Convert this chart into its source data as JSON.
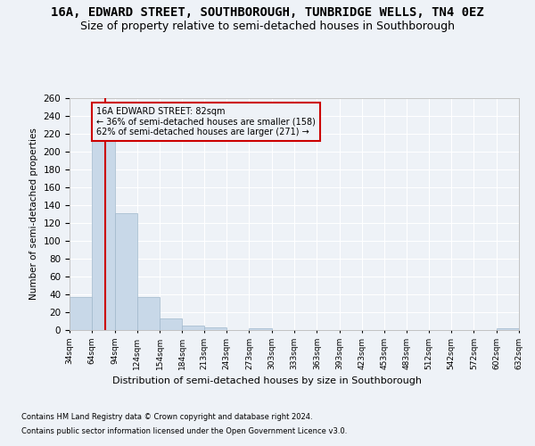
{
  "title1": "16A, EDWARD STREET, SOUTHBOROUGH, TUNBRIDGE WELLS, TN4 0EZ",
  "title2": "Size of property relative to semi-detached houses in Southborough",
  "xlabel": "Distribution of semi-detached houses by size in Southborough",
  "ylabel": "Number of semi-detached properties",
  "footnote1": "Contains HM Land Registry data © Crown copyright and database right 2024.",
  "footnote2": "Contains public sector information licensed under the Open Government Licence v3.0.",
  "annotation_line1": "16A EDWARD STREET: 82sqm",
  "annotation_line2": "← 36% of semi-detached houses are smaller (158)",
  "annotation_line3": "62% of semi-detached houses are larger (271) →",
  "property_size": 82,
  "bin_edges": [
    34,
    64,
    94,
    124,
    154,
    184,
    213,
    243,
    273,
    303,
    333,
    363,
    393,
    423,
    453,
    483,
    512,
    542,
    572,
    602,
    632
  ],
  "bar_values": [
    37,
    214,
    131,
    37,
    13,
    5,
    3,
    0,
    2,
    0,
    0,
    0,
    0,
    0,
    0,
    0,
    0,
    0,
    0,
    2
  ],
  "bar_color": "#c8d8e8",
  "bar_edge_color": "#a0b8cc",
  "vline_color": "#cc0000",
  "vline_x": 82,
  "annotation_box_edge": "#cc0000",
  "ylim": [
    0,
    260
  ],
  "yticks": [
    0,
    20,
    40,
    60,
    80,
    100,
    120,
    140,
    160,
    180,
    200,
    220,
    240,
    260
  ],
  "bg_color": "#eef2f7",
  "grid_color": "#ffffff",
  "title_fontsize": 10,
  "subtitle_fontsize": 9
}
